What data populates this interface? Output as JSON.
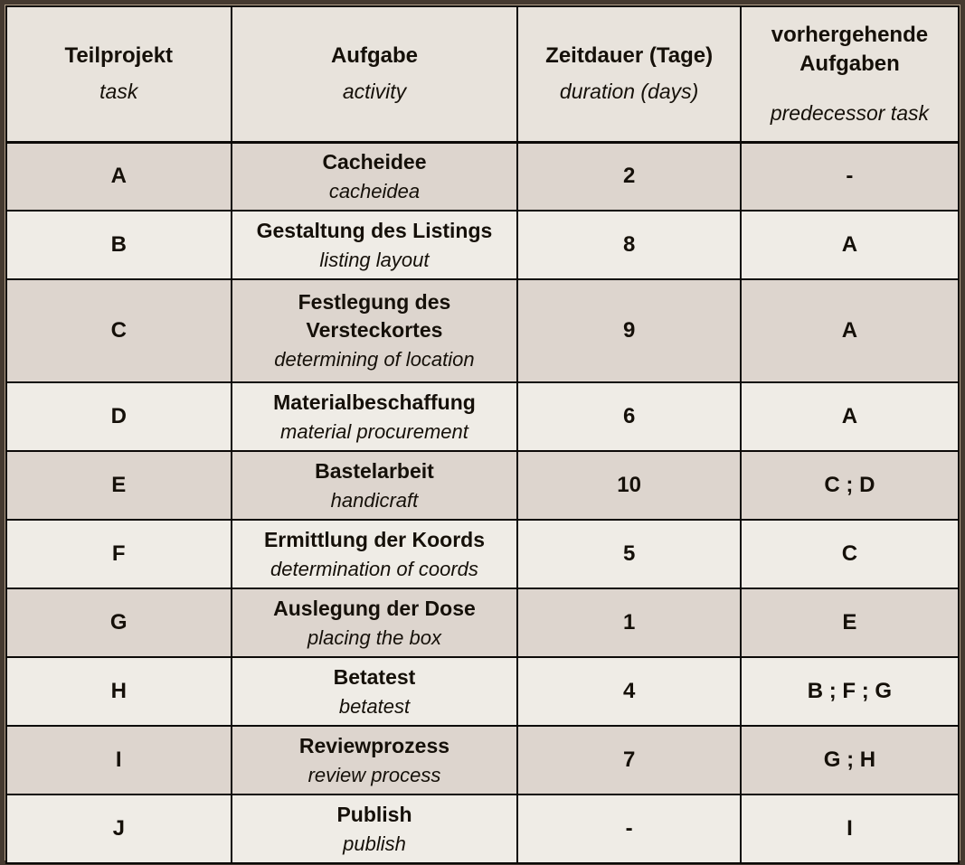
{
  "table": {
    "columns": {
      "task": {
        "de": "Teilprojekt",
        "en": "task"
      },
      "activity": {
        "de": "Aufgabe",
        "en": "activity"
      },
      "duration": {
        "de": "Zeitdauer (Tage)",
        "en": "duration (days)"
      },
      "predecessors": {
        "de": "vorhergehende Aufgaben",
        "en": "predecessor task"
      }
    },
    "rows": [
      {
        "task": "A",
        "activity_de": "Cacheidee",
        "activity_en": "cacheidea",
        "duration": "2",
        "predecessors": "-"
      },
      {
        "task": "B",
        "activity_de": "Gestaltung des Listings",
        "activity_en": "listing layout",
        "duration": "8",
        "predecessors": "A"
      },
      {
        "task": "C",
        "activity_de": "Festlegung des Versteckortes",
        "activity_en": "determining of location",
        "duration": "9",
        "predecessors": "A"
      },
      {
        "task": "D",
        "activity_de": "Materialbeschaffung",
        "activity_en": "material procurement",
        "duration": "6",
        "predecessors": "A"
      },
      {
        "task": "E",
        "activity_de": "Bastelarbeit",
        "activity_en": "handicraft",
        "duration": "10",
        "predecessors": "C ; D"
      },
      {
        "task": "F",
        "activity_de": "Ermittlung der Koords",
        "activity_en": "determination of coords",
        "duration": "5",
        "predecessors": "C"
      },
      {
        "task": "G",
        "activity_de": "Auslegung der Dose",
        "activity_en": "placing the box",
        "duration": "1",
        "predecessors": "E"
      },
      {
        "task": "H",
        "activity_de": "Betatest",
        "activity_en": "betatest",
        "duration": "4",
        "predecessors": "B ; F ; G"
      },
      {
        "task": "I",
        "activity_de": "Reviewprozess",
        "activity_en": "review process",
        "duration": "7",
        "predecessors": "G ; H"
      },
      {
        "task": "J",
        "activity_de": "Publish",
        "activity_en": "publish",
        "duration": "-",
        "predecessors": "I"
      }
    ],
    "colors": {
      "header_bg": "#e8e3dc",
      "row_odd_bg": "#ddd5ce",
      "row_even_bg": "#efece6",
      "cell_border": "#0c0a08",
      "frame_border": "#453a30",
      "frame_inner_line": "#b5a28c",
      "text": "#151009"
    }
  }
}
